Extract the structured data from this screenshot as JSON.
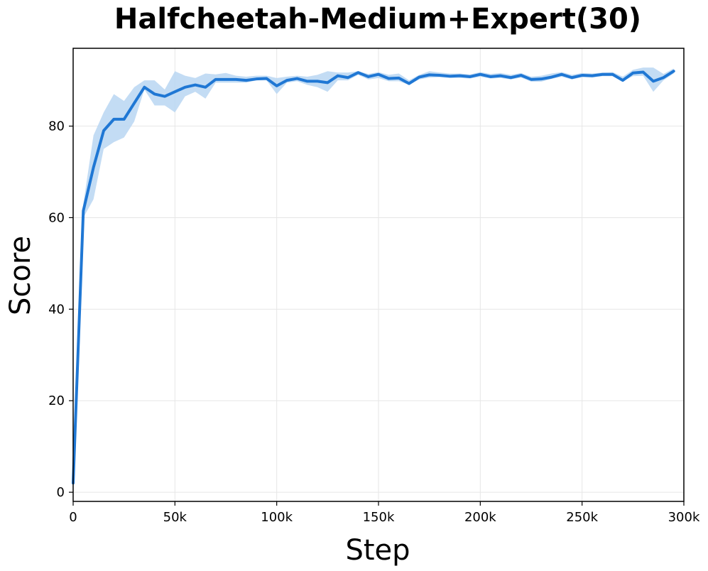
{
  "chart_data": {
    "type": "line",
    "title": "Halfcheetah-Medium+Expert(30)",
    "xlabel": "Step",
    "ylabel": "Score",
    "xlim": [
      0,
      300000
    ],
    "ylim": [
      -2,
      97
    ],
    "grid": true,
    "x_ticks": [
      0,
      50000,
      100000,
      150000,
      200000,
      250000,
      300000
    ],
    "x_tick_labels": [
      "0",
      "50k",
      "100k",
      "150k",
      "200k",
      "250k",
      "300k"
    ],
    "y_ticks": [
      0,
      20,
      40,
      60,
      80
    ],
    "y_tick_labels": [
      "0",
      "20",
      "40",
      "60",
      "80"
    ],
    "series": [
      {
        "color": "#1f77d4",
        "band_color": "#b9d6f2",
        "x": [
          0,
          5000,
          10000,
          15000,
          20000,
          25000,
          30000,
          35000,
          40000,
          45000,
          50000,
          55000,
          60000,
          65000,
          70000,
          75000,
          80000,
          85000,
          90000,
          95000,
          100000,
          105000,
          110000,
          115000,
          120000,
          125000,
          130000,
          135000,
          140000,
          145000,
          150000,
          155000,
          160000,
          165000,
          170000,
          175000,
          180000,
          185000,
          190000,
          195000,
          200000,
          205000,
          210000,
          215000,
          220000,
          225000,
          230000,
          235000,
          240000,
          245000,
          250000,
          255000,
          260000,
          265000,
          270000,
          275000,
          280000,
          285000,
          290000,
          295000
        ],
        "values": [
          2.0,
          61.5,
          71.0,
          79.0,
          81.5,
          81.5,
          85.0,
          88.5,
          87.0,
          86.5,
          87.5,
          88.5,
          89.0,
          88.5,
          90.2,
          90.2,
          90.2,
          90.0,
          90.3,
          90.4,
          88.8,
          90.0,
          90.4,
          89.8,
          89.8,
          89.5,
          91.0,
          90.6,
          91.7,
          90.8,
          91.3,
          90.4,
          90.5,
          89.3,
          90.7,
          91.2,
          91.1,
          90.9,
          91.0,
          90.8,
          91.3,
          90.8,
          91.0,
          90.6,
          91.1,
          90.2,
          90.3,
          90.7,
          91.3,
          90.6,
          91.1,
          91.0,
          91.3,
          91.3,
          90.0,
          91.6,
          91.8,
          89.8,
          90.6,
          92.0
        ],
        "lower": [
          1.0,
          60.0,
          64.0,
          75.0,
          76.5,
          77.5,
          81.0,
          88.0,
          84.5,
          84.5,
          83.0,
          86.5,
          87.5,
          86.0,
          89.5,
          89.5,
          89.5,
          89.5,
          90.0,
          90.0,
          87.0,
          89.5,
          89.8,
          89.0,
          88.5,
          87.5,
          90.0,
          90.0,
          91.2,
          90.2,
          90.5,
          89.8,
          89.8,
          89.0,
          90.2,
          90.6,
          90.7,
          90.5,
          90.5,
          90.4,
          90.8,
          90.4,
          90.5,
          90.2,
          90.6,
          89.7,
          89.7,
          90.3,
          90.8,
          90.2,
          90.7,
          90.6,
          90.9,
          90.9,
          89.8,
          90.9,
          91.0,
          87.5,
          90.0,
          91.5
        ],
        "upper": [
          3.0,
          63.0,
          78.0,
          83.0,
          87.0,
          85.5,
          88.5,
          90.0,
          90.0,
          88.0,
          92.0,
          91.0,
          90.5,
          91.5,
          91.3,
          91.6,
          91.0,
          90.8,
          91.0,
          91.0,
          90.5,
          90.8,
          91.0,
          90.8,
          91.2,
          92.0,
          91.7,
          91.7,
          92.0,
          91.4,
          91.8,
          91.2,
          91.5,
          90.0,
          91.2,
          92.0,
          91.7,
          91.5,
          91.5,
          91.3,
          91.8,
          91.4,
          91.6,
          91.2,
          91.6,
          90.8,
          91.0,
          91.5,
          91.8,
          91.2,
          91.6,
          91.5,
          91.7,
          91.8,
          90.8,
          92.3,
          92.8,
          92.8,
          91.4,
          92.6
        ]
      }
    ]
  }
}
